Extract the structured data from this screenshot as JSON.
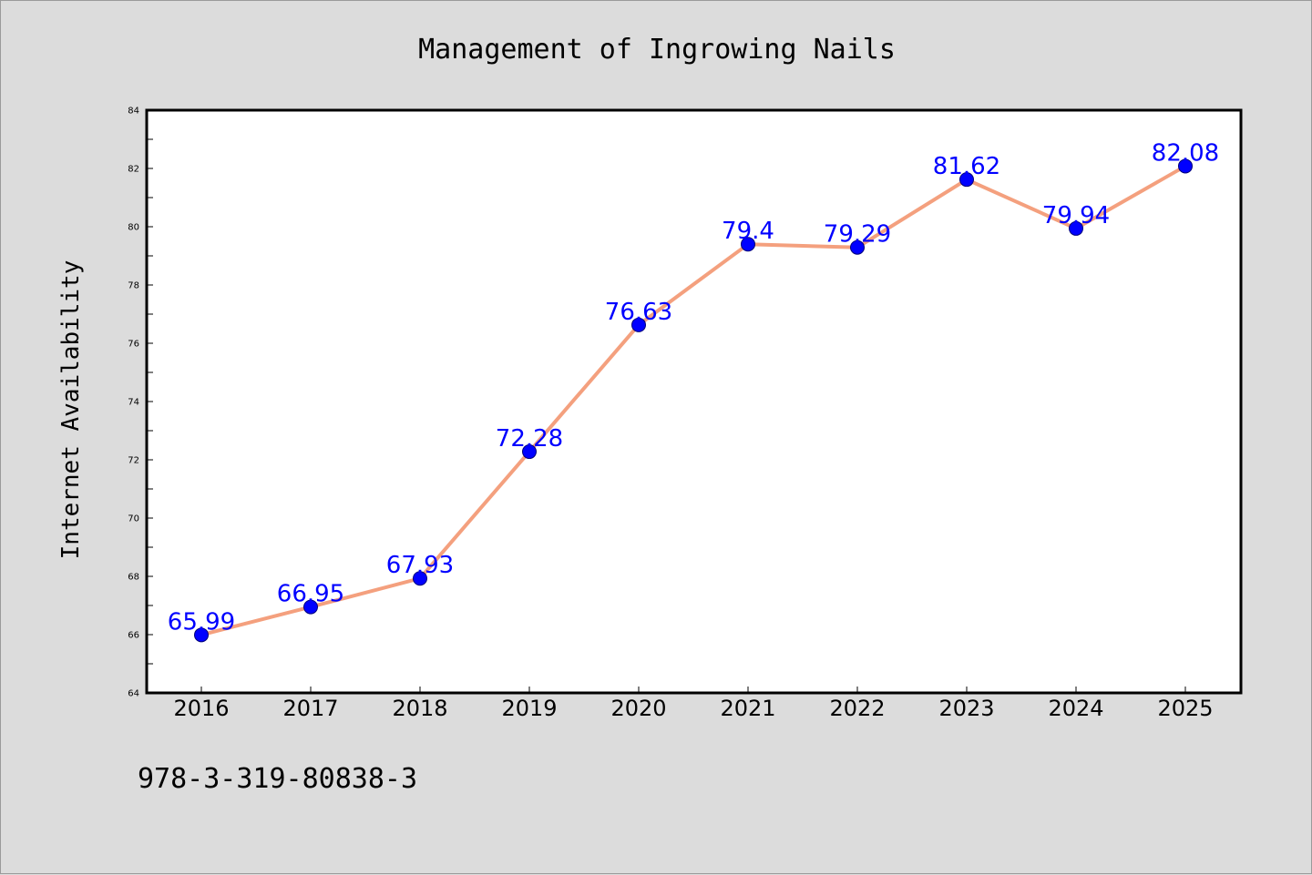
{
  "chart_data": {
    "type": "line",
    "title": "Management of Ingrowing Nails",
    "xlabel": "",
    "ylabel": "Internet Availability",
    "categories": [
      "2016",
      "2017",
      "2018",
      "2019",
      "2020",
      "2021",
      "2022",
      "2023",
      "2024",
      "2025"
    ],
    "series": [
      {
        "values": [
          65.99,
          66.95,
          67.93,
          72.28,
          76.63,
          79.4,
          79.29,
          81.62,
          79.94,
          82.08
        ],
        "labels": [
          "65.99",
          "66.95",
          "67.93",
          "72.28",
          "76.63",
          "79.4",
          "79.29",
          "81.62",
          "79.94",
          "82.08"
        ]
      }
    ],
    "ylim": [
      64,
      84
    ],
    "yticks": [
      "64",
      "66",
      "68",
      "70",
      "72",
      "74",
      "76",
      "78",
      "80",
      "82",
      "84"
    ],
    "grid": false,
    "legend": "none",
    "colors": {
      "line": "#f4a07e",
      "marker": "#0000ff",
      "marker_edge": "#00007a",
      "data_label": "#0000ff",
      "background": "#dcdcdc",
      "plot_area": "#ffffff"
    }
  },
  "footnote": "978-3-319-80838-3"
}
